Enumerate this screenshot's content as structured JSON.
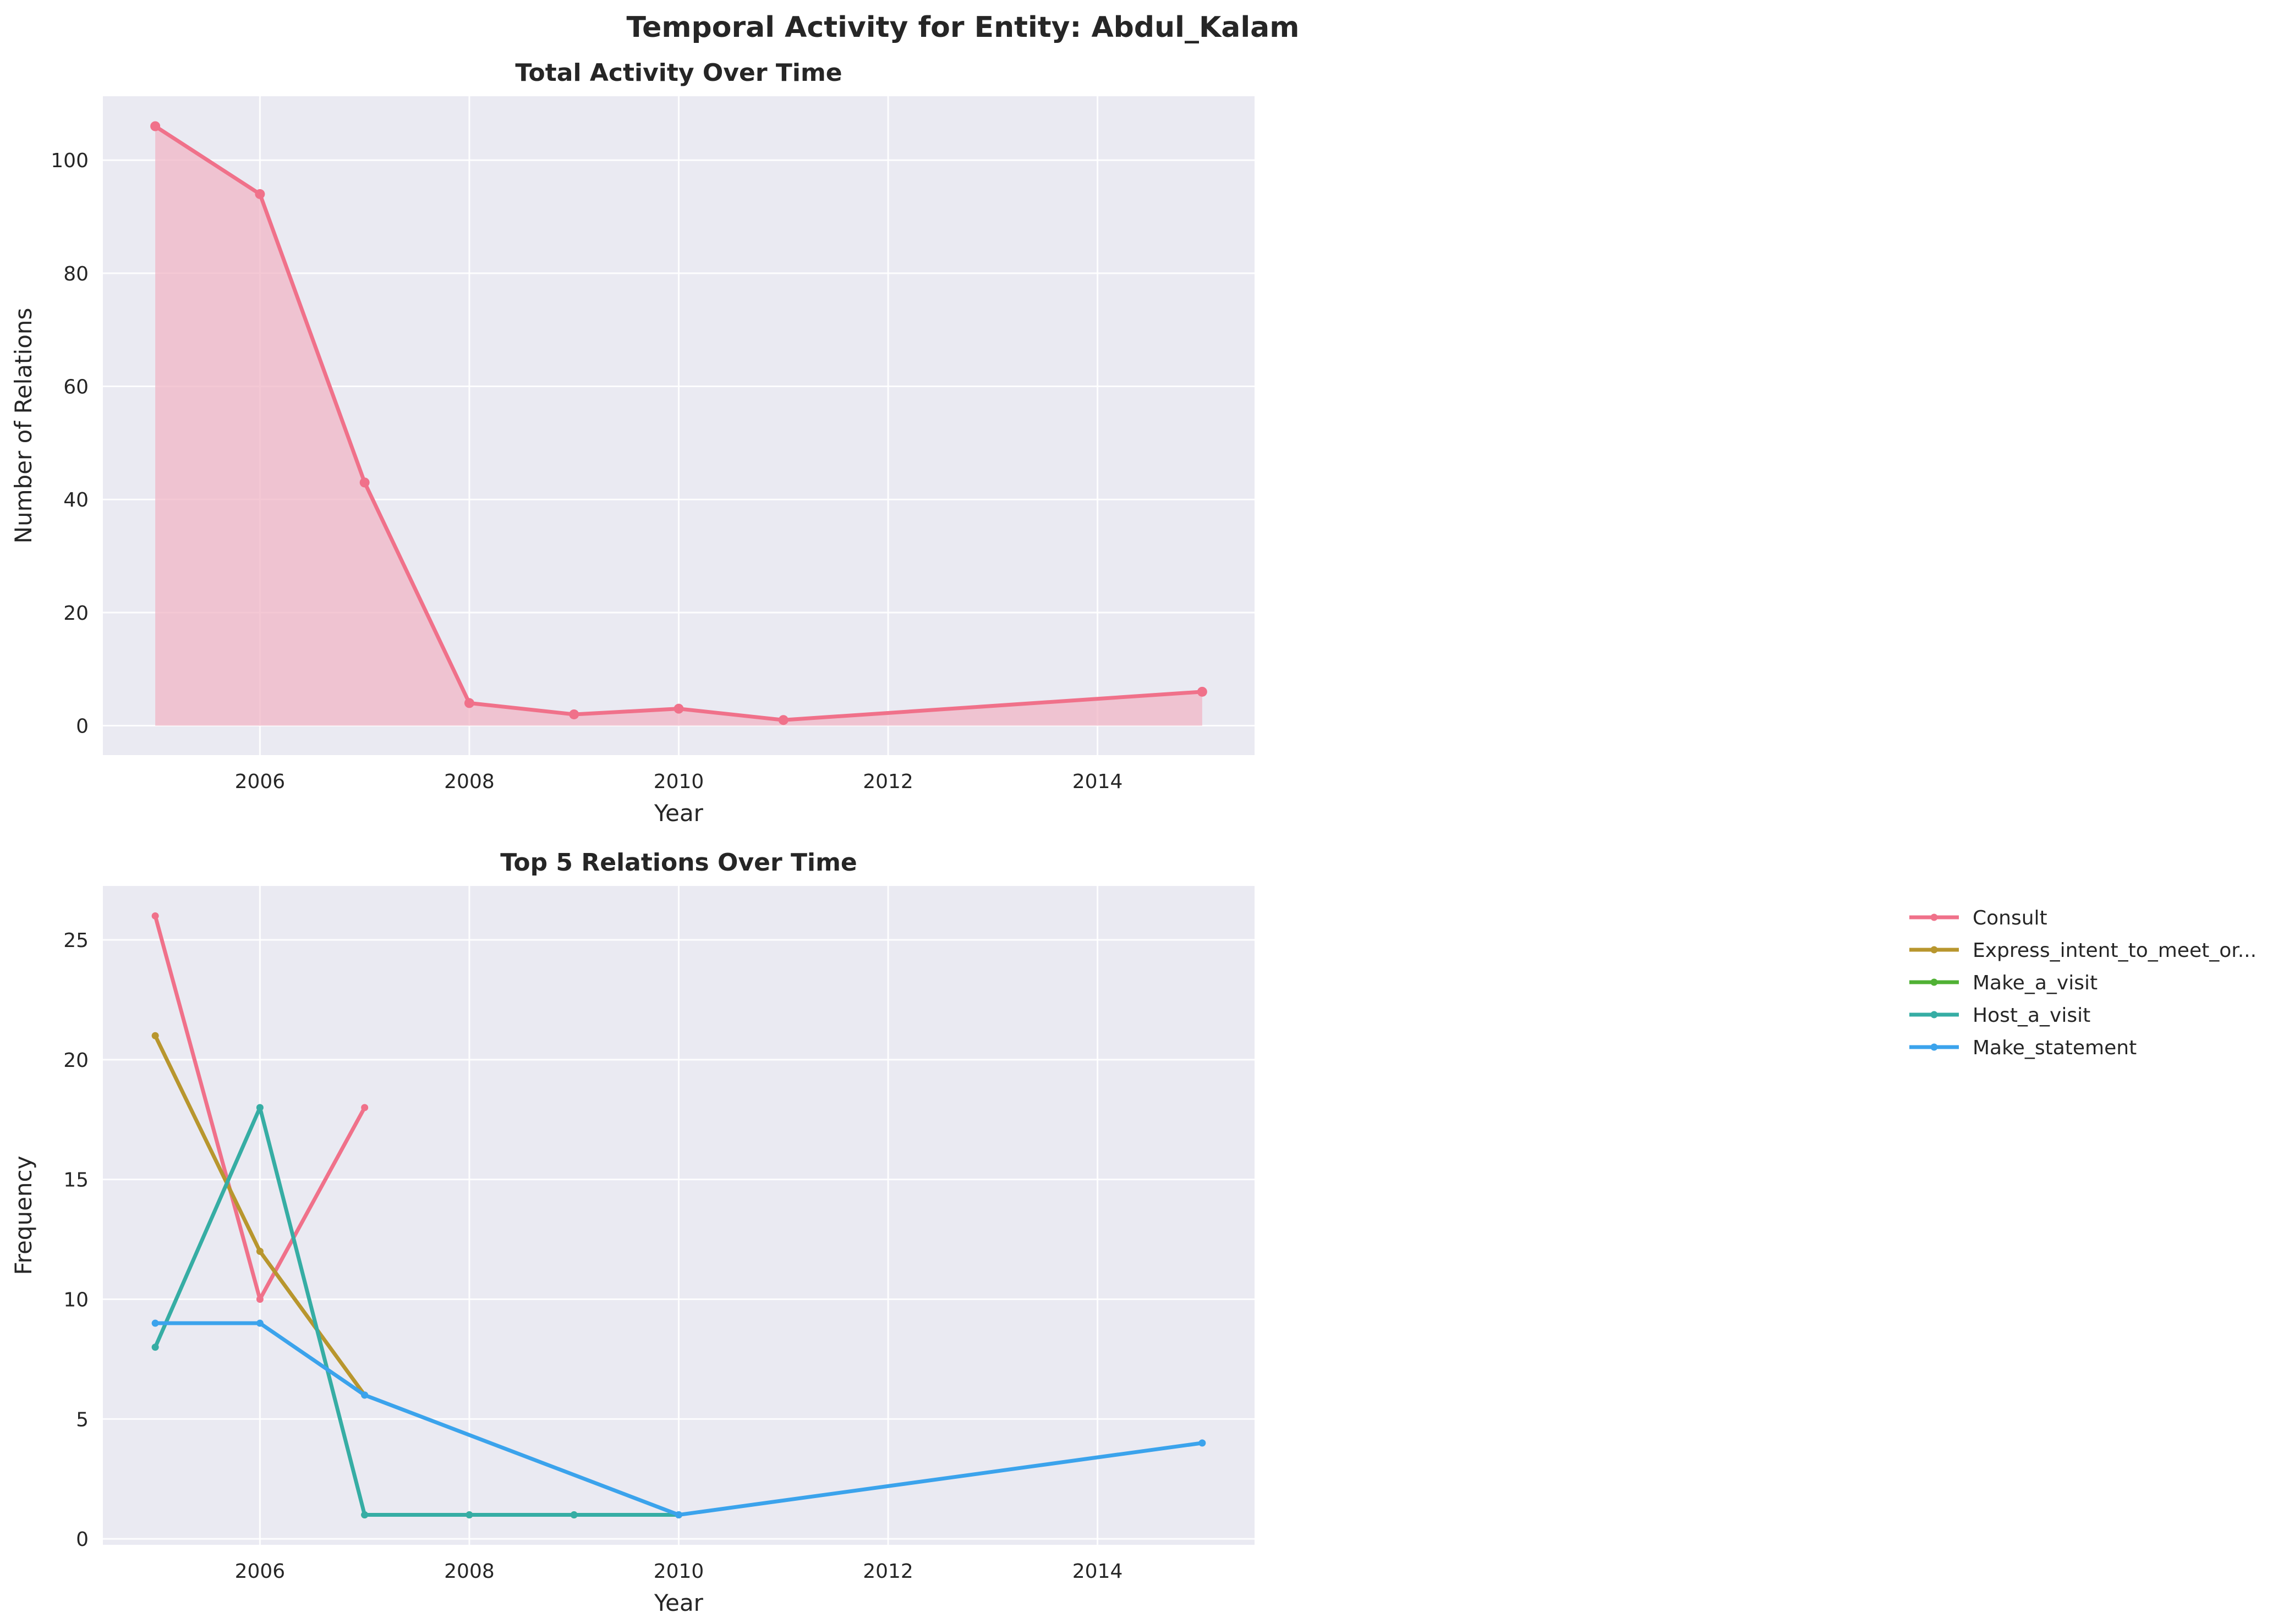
{
  "figure": {
    "suptitle": "Temporal Activity for Entity: Abdul_Kalam"
  },
  "chart_data": [
    {
      "type": "area",
      "title": "Total Activity Over Time",
      "xlabel": "Year",
      "ylabel": "Number of Relations",
      "xlim": [
        2004.5,
        2015.5
      ],
      "ylim": [
        -5.2,
        111.3
      ],
      "xticks": [
        2006,
        2008,
        2010,
        2012,
        2014
      ],
      "yticks": [
        0,
        20,
        40,
        60,
        80,
        100
      ],
      "grid": true,
      "series": [
        {
          "color": "#f0718a",
          "fill": "#f0b6c6",
          "x": [
            2005,
            2006,
            2007,
            2008,
            2009,
            2010,
            2011,
            2015
          ],
          "values": [
            106,
            94,
            43,
            4,
            2,
            3,
            1,
            6
          ]
        }
      ]
    },
    {
      "type": "line",
      "title": "Top 5 Relations Over Time",
      "xlabel": "Year",
      "ylabel": "Frequency",
      "xlim": [
        2004.5,
        2015.5
      ],
      "ylim": [
        -0.25,
        27.25
      ],
      "xticks": [
        2006,
        2008,
        2010,
        2012,
        2014
      ],
      "yticks": [
        0,
        5,
        10,
        15,
        20,
        25
      ],
      "grid": true,
      "legend": "outside-right",
      "series": [
        {
          "name": "Consult",
          "color": "#f0718a",
          "x": [
            2005,
            2006,
            2007
          ],
          "values": [
            26,
            10,
            18
          ]
        },
        {
          "name": "Express_intent_to_meet_or...",
          "color": "#b8962e",
          "x": [
            2005,
            2006,
            2007
          ],
          "values": [
            21,
            12,
            6
          ]
        },
        {
          "name": "Make_a_visit",
          "color": "#50b134",
          "x": [
            2007,
            2008,
            2009,
            2010
          ],
          "values": [
            1,
            1,
            1,
            1
          ]
        },
        {
          "name": "Host_a_visit",
          "color": "#36ada4",
          "x": [
            2005,
            2006,
            2007,
            2008,
            2009,
            2010
          ],
          "values": [
            8,
            18,
            1,
            1,
            1,
            1
          ]
        },
        {
          "name": "Make_statement",
          "color": "#3ba3ec",
          "x": [
            2005,
            2006,
            2007,
            2010,
            2015
          ],
          "values": [
            9,
            9,
            6,
            1,
            4
          ]
        }
      ]
    }
  ]
}
